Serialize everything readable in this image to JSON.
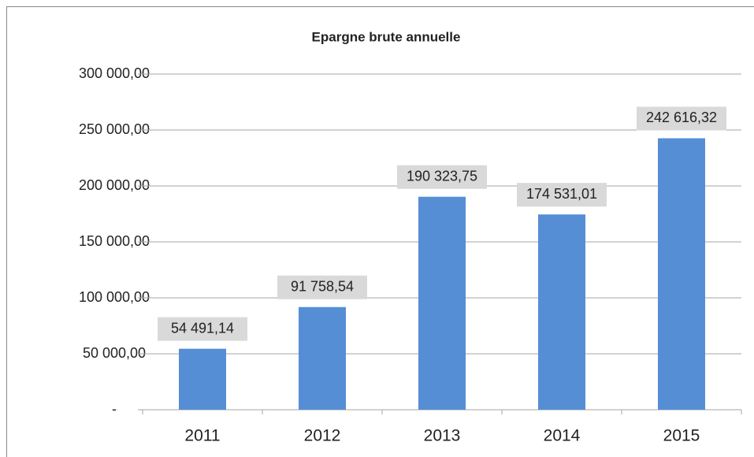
{
  "chart_data": {
    "type": "bar",
    "title": "Epargne brute annuelle",
    "categories": [
      "2011",
      "2012",
      "2013",
      "2014",
      "2015"
    ],
    "values": [
      54491.14,
      91758.54,
      190323.75,
      174531.01,
      242616.32
    ],
    "value_labels": [
      "54 491,14",
      "91 758,54",
      "190 323,75",
      "174 531,01",
      "242 616,32"
    ],
    "color": "#558ed5",
    "ylim": [
      0,
      300000
    ],
    "yticks": [
      {
        "value": 0,
        "label": "-"
      },
      {
        "value": 50000,
        "label": "50 000,00"
      },
      {
        "value": 100000,
        "label": "100 000,00"
      },
      {
        "value": 150000,
        "label": "150 000,00"
      },
      {
        "value": 200000,
        "label": "200 000,00"
      },
      {
        "value": 250000,
        "label": "250 000,00"
      },
      {
        "value": 300000,
        "label": "300 000,00"
      }
    ],
    "grid": true
  }
}
